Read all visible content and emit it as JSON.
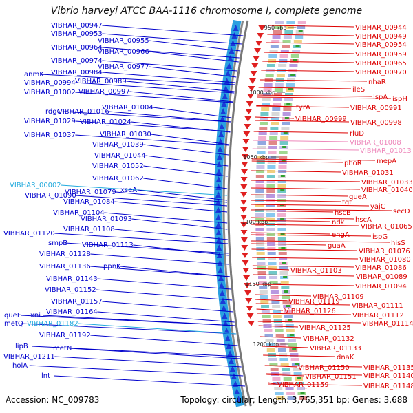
{
  "title": "Vibrio harveyi ATCC BAA-1116 chromosome I, complete genome",
  "footer": {
    "accession": "Accession: NC_009783",
    "summary": "Topology: circular; Length: 3,765,351 bp; Genes: 3,688"
  },
  "scale_ticks": [
    "950 kbp",
    "1000 kbp",
    "1050 kbp",
    "1100 kbp",
    "1150 kbp",
    "1200 kbp"
  ],
  "left_labels": [
    {
      "text": "VIBHAR_00947",
      "color": "#0000cc"
    },
    {
      "text": "VIBHAR_00953",
      "color": "#0000cc"
    },
    {
      "text": "VIBHAR_00955",
      "color": "#0000cc"
    },
    {
      "text": "VIBHAR_00964",
      "color": "#0000cc"
    },
    {
      "text": "VIBHAR_00966",
      "color": "#0000cc"
    },
    {
      "text": "VIBHAR_00974",
      "color": "#0000cc"
    },
    {
      "text": "VIBHAR_00977",
      "color": "#0000cc"
    },
    {
      "text": "anmK",
      "color": "#0000cc"
    },
    {
      "text": "VIBHAR_00984",
      "color": "#0000cc"
    },
    {
      "text": "VIBHAR_00994",
      "color": "#0000cc"
    },
    {
      "text": "VIBHAR_00989",
      "color": "#0000cc"
    },
    {
      "text": "VIBHAR_01002",
      "color": "#0000cc"
    },
    {
      "text": "VIBHAR_00997",
      "color": "#0000cc"
    },
    {
      "text": "VIBHAR_01004",
      "color": "#0000cc"
    },
    {
      "text": "rdgC",
      "color": "#0000cc"
    },
    {
      "text": "VIBHAR_01016",
      "color": "#0000cc"
    },
    {
      "text": "VIBHAR_01029",
      "color": "#0000cc"
    },
    {
      "text": "VIBHAR_01024",
      "color": "#0000cc"
    },
    {
      "text": "VIBHAR_01037",
      "color": "#0000cc"
    },
    {
      "text": "VIBHAR_01030",
      "color": "#0000cc"
    },
    {
      "text": "VIBHAR_01039",
      "color": "#0000cc"
    },
    {
      "text": "VIBHAR_01044",
      "color": "#0000cc"
    },
    {
      "text": "VIBHAR_01052",
      "color": "#0000cc"
    },
    {
      "text": "VIBHAR_01062",
      "color": "#0000cc"
    },
    {
      "text": "VIBHAR_00002",
      "color": "#22aadd"
    },
    {
      "text": "VIBHAR_01079",
      "color": "#0000cc"
    },
    {
      "text": "xseA",
      "color": "#0000cc"
    },
    {
      "text": "VIBHAR_01090",
      "color": "#0000cc"
    },
    {
      "text": "VIBHAR_01084",
      "color": "#0000cc"
    },
    {
      "text": "VIBHAR_01104",
      "color": "#0000cc"
    },
    {
      "text": "VIBHAR_01093",
      "color": "#0000cc"
    },
    {
      "text": "VIBHAR_01108",
      "color": "#0000cc"
    },
    {
      "text": "VIBHAR_01120",
      "color": "#0000cc"
    },
    {
      "text": "smpB",
      "color": "#0000cc"
    },
    {
      "text": "VIBHAR_01113",
      "color": "#0000cc"
    },
    {
      "text": "VIBHAR_01128",
      "color": "#0000cc"
    },
    {
      "text": "VIBHAR_01136",
      "color": "#0000cc"
    },
    {
      "text": "ppnK",
      "color": "#0000cc"
    },
    {
      "text": "VIBHAR_01143",
      "color": "#0000cc"
    },
    {
      "text": "VIBHAR_01152",
      "color": "#0000cc"
    },
    {
      "text": "VIBHAR_01157",
      "color": "#0000cc"
    },
    {
      "text": "VIBHAR_01164",
      "color": "#0000cc"
    },
    {
      "text": "queF",
      "color": "#0000cc"
    },
    {
      "text": "xni",
      "color": "#0000cc"
    },
    {
      "text": "metQ",
      "color": "#0000cc"
    },
    {
      "text": "VIBHAR_01182",
      "color": "#22aadd"
    },
    {
      "text": "VIBHAR_01192",
      "color": "#0000cc"
    },
    {
      "text": "lipB",
      "color": "#0000cc"
    },
    {
      "text": "metN",
      "color": "#0000cc"
    },
    {
      "text": "VIBHAR_01211",
      "color": "#0000cc"
    },
    {
      "text": "holA",
      "color": "#0000cc"
    },
    {
      "text": "lnt",
      "color": "#0000cc"
    }
  ],
  "right_labels": [
    {
      "text": "VIBHAR_00944",
      "color": "#dd0000"
    },
    {
      "text": "VIBHAR_00949",
      "color": "#dd0000"
    },
    {
      "text": "VIBHAR_00954",
      "color": "#dd0000"
    },
    {
      "text": "VIBHAR_00959",
      "color": "#dd0000"
    },
    {
      "text": "VIBHAR_00965",
      "color": "#dd0000"
    },
    {
      "text": "VIBHAR_00970",
      "color": "#dd0000"
    },
    {
      "text": "nhaR",
      "color": "#dd0000"
    },
    {
      "text": "ileS",
      "color": "#dd0000"
    },
    {
      "text": "lspA",
      "color": "#dd0000"
    },
    {
      "text": "ispH",
      "color": "#dd0000"
    },
    {
      "text": "tyrA",
      "color": "#dd0000"
    },
    {
      "text": "VIBHAR_00991",
      "color": "#dd0000"
    },
    {
      "text": "VIBHAR_00999",
      "color": "#dd0000"
    },
    {
      "text": "VIBHAR_00998",
      "color": "#dd0000"
    },
    {
      "text": "rluD",
      "color": "#dd0000"
    },
    {
      "text": "VIBHAR_01008",
      "color": "#ee88bb"
    },
    {
      "text": "VIBHAR_01013",
      "color": "#ee88bb"
    },
    {
      "text": "mepA",
      "color": "#dd0000"
    },
    {
      "text": "phoR",
      "color": "#dd0000"
    },
    {
      "text": "VIBHAR_01031",
      "color": "#dd0000"
    },
    {
      "text": "VIBHAR_01033",
      "color": "#dd0000"
    },
    {
      "text": "VIBHAR_01040",
      "color": "#dd0000"
    },
    {
      "text": "queA",
      "color": "#dd0000"
    },
    {
      "text": "tgt",
      "color": "#dd0000"
    },
    {
      "text": "yajC",
      "color": "#dd0000"
    },
    {
      "text": "secD",
      "color": "#dd0000"
    },
    {
      "text": "hscB",
      "color": "#dd0000"
    },
    {
      "text": "hscA",
      "color": "#dd0000"
    },
    {
      "text": "ndk",
      "color": "#dd0000"
    },
    {
      "text": "VIBHAR_01065",
      "color": "#dd0000"
    },
    {
      "text": "engA",
      "color": "#dd0000"
    },
    {
      "text": "ispG",
      "color": "#dd0000"
    },
    {
      "text": "hisS",
      "color": "#dd0000"
    },
    {
      "text": "guaA",
      "color": "#dd0000"
    },
    {
      "text": "VIBHAR_01076",
      "color": "#dd0000"
    },
    {
      "text": "VIBHAR_01080",
      "color": "#dd0000"
    },
    {
      "text": "VIBHAR_01103",
      "color": "#dd0000"
    },
    {
      "text": "VIBHAR_01086",
      "color": "#dd0000"
    },
    {
      "text": "VIBHAR_01089",
      "color": "#dd0000"
    },
    {
      "text": "VIBHAR_01094",
      "color": "#dd0000"
    },
    {
      "text": "VIBHAR_01109",
      "color": "#dd0000"
    },
    {
      "text": "VIBHAR_01119",
      "color": "#dd0000"
    },
    {
      "text": "VIBHAR_01111",
      "color": "#dd0000"
    },
    {
      "text": "VIBHAR_01126",
      "color": "#dd0000"
    },
    {
      "text": "VIBHAR_01112",
      "color": "#dd0000"
    },
    {
      "text": "VIBHAR_01114",
      "color": "#dd0000"
    },
    {
      "text": "VIBHAR_01125",
      "color": "#dd0000"
    },
    {
      "text": "VIBHAR_01132",
      "color": "#dd0000"
    },
    {
      "text": "VIBHAR_01133",
      "color": "#dd0000"
    },
    {
      "text": "dnaK",
      "color": "#dd0000"
    },
    {
      "text": "VIBHAR_01135",
      "color": "#dd0000"
    },
    {
      "text": "VIBHAR_01150",
      "color": "#dd0000"
    },
    {
      "text": "VIBHAR_01140",
      "color": "#dd0000"
    },
    {
      "text": "VIBHAR_01151",
      "color": "#dd0000"
    },
    {
      "text": "VIBHAR_01159",
      "color": "#dd0000"
    },
    {
      "text": "VIBHAR_01148",
      "color": "#dd0000"
    }
  ]
}
